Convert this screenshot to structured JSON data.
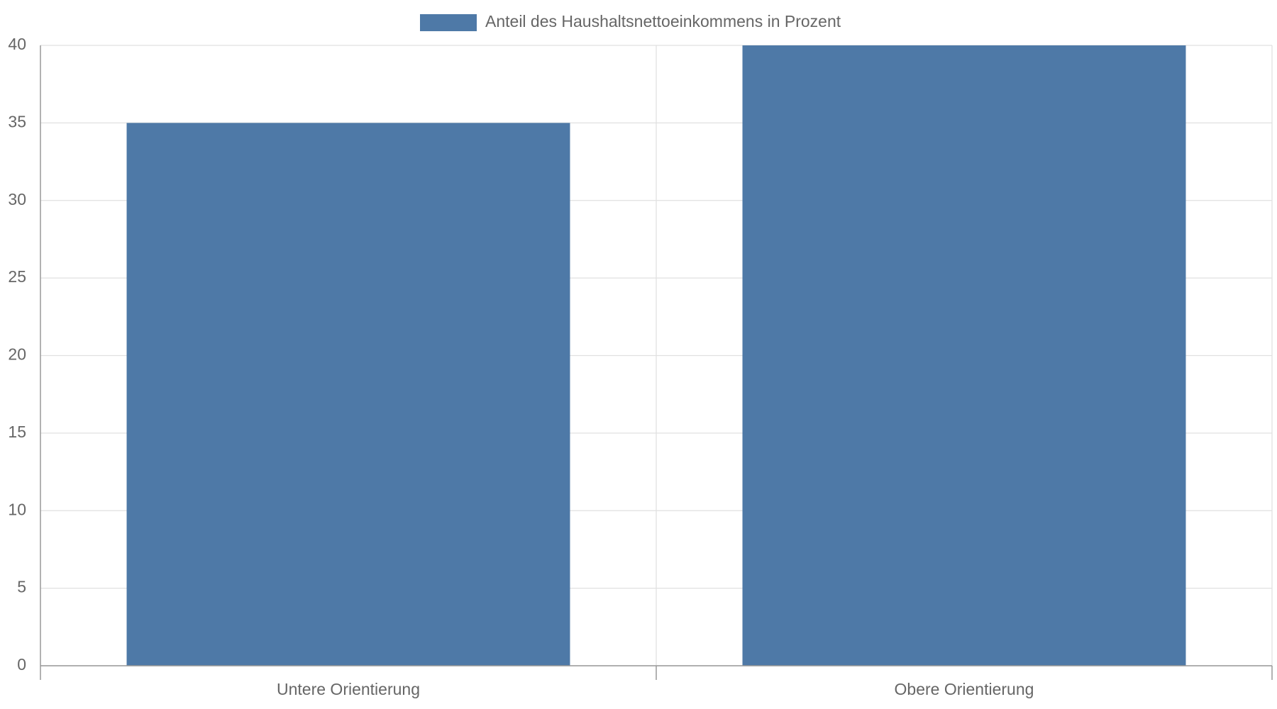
{
  "chart_data": {
    "type": "bar",
    "categories": [
      "Untere Orientierung",
      "Obere Orientierung"
    ],
    "series": [
      {
        "name": "Anteil des Haushaltsnettoeinkommens in Prozent",
        "color": "#4e79a7",
        "values": [
          35,
          40
        ]
      }
    ],
    "ylim": [
      0,
      40
    ],
    "yticks": [
      0,
      5,
      10,
      15,
      20,
      25,
      30,
      35,
      40
    ],
    "grid": true,
    "legend": "top"
  }
}
